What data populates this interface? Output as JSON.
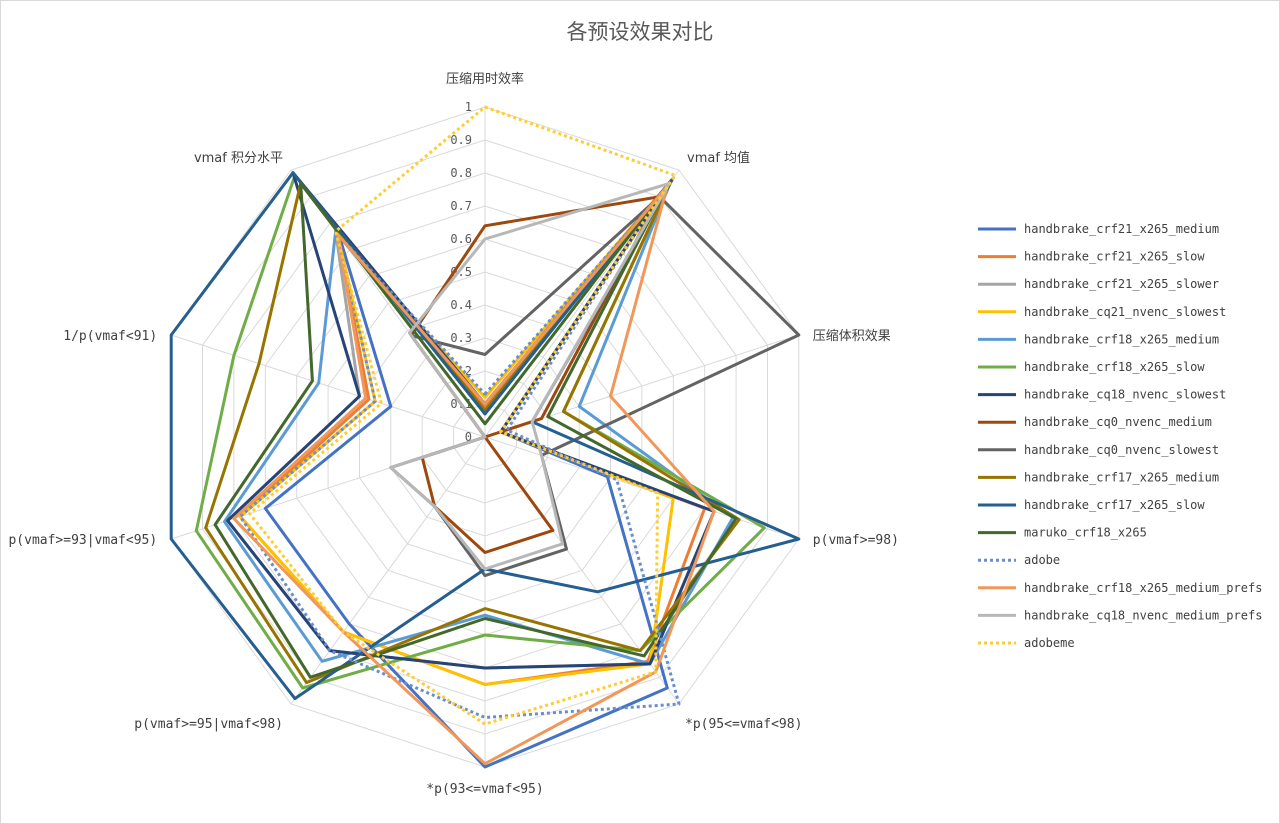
{
  "chart_data": {
    "type": "radar",
    "title": "各预设效果对比",
    "axes": [
      "压缩用时效率",
      "vmaf 均值",
      "压缩体积效果",
      "p(vmaf>=98)",
      "*p(95<=vmaf<98)",
      "*p(93<=vmaf<95)",
      "p(vmaf>=95|vmaf<98)",
      "p(vmaf>=93|vmaf<95)",
      "1/p(vmaf<91)",
      "vmaf 积分水平"
    ],
    "ticks": [
      "0",
      "0.1",
      "0.2",
      "0.3",
      "0.4",
      "0.5",
      "0.6",
      "0.7",
      "0.8",
      "0.9",
      "1"
    ],
    "range": [
      0,
      1
    ],
    "grid": true,
    "legend_position": "right",
    "series": [
      {
        "name": "handbrake_crf21_x265_medium",
        "color": "#4472c4",
        "dash": false,
        "values": [
          0.1,
          0.95,
          0.05,
          0.39,
          0.94,
          1.0,
          0.7,
          0.7,
          0.3,
          0.75
        ]
      },
      {
        "name": "handbrake_crf21_x265_slow",
        "color": "#ed7d31",
        "dash": false,
        "values": [
          0.09,
          0.95,
          0.05,
          0.7,
          0.84,
          0.75,
          0.73,
          0.78,
          0.37,
          0.76
        ]
      },
      {
        "name": "handbrake_crf21_x265_slower",
        "color": "#a5a5a5",
        "dash": false,
        "values": [
          0.08,
          0.95,
          0.05,
          0.73,
          0.85,
          0.7,
          0.8,
          0.82,
          0.4,
          0.77
        ]
      },
      {
        "name": "handbrake_cq21_nvenc_slowest",
        "color": "#ffc000",
        "dash": false,
        "values": [
          0.12,
          0.96,
          0.05,
          0.6,
          0.85,
          0.75,
          0.73,
          0.78,
          0.35,
          0.76
        ]
      },
      {
        "name": "handbrake_crf18_x265_medium",
        "color": "#5b9bd5",
        "dash": false,
        "values": [
          0.08,
          0.96,
          0.3,
          0.79,
          0.85,
          0.54,
          0.84,
          0.83,
          0.53,
          0.77
        ]
      },
      {
        "name": "handbrake_crf18_x265_slow",
        "color": "#70ad47",
        "dash": false,
        "values": [
          0.07,
          0.96,
          0.25,
          0.89,
          0.8,
          0.6,
          0.94,
          0.92,
          0.8,
          0.98
        ]
      },
      {
        "name": "handbrake_cq18_nvenc_slowest",
        "color": "#264478",
        "dash": false,
        "values": [
          0.1,
          0.96,
          0.05,
          0.73,
          0.85,
          0.7,
          0.8,
          0.82,
          0.4,
          0.99
        ]
      },
      {
        "name": "handbrake_cq0_nvenc_medium",
        "color": "#9e480e",
        "dash": false,
        "values": [
          0.64,
          0.9,
          0.18,
          0.0,
          0.35,
          0.35,
          0.26,
          0.2,
          0.0,
          0.38
        ]
      },
      {
        "name": "handbrake_cq0_nvenc_slowest",
        "color": "#636363",
        "dash": false,
        "values": [
          0.25,
          0.9,
          1.0,
          0.18,
          0.42,
          0.42,
          0.26,
          0.3,
          0.0,
          0.38
        ]
      },
      {
        "name": "handbrake_crf17_x265_medium",
        "color": "#997300",
        "dash": false,
        "values": [
          0.08,
          0.96,
          0.25,
          0.81,
          0.8,
          0.52,
          0.92,
          0.89,
          0.72,
          0.95
        ]
      },
      {
        "name": "handbrake_crf17_x265_slow",
        "color": "#255e91",
        "dash": false,
        "values": [
          0.07,
          0.97,
          0.15,
          1.0,
          0.58,
          0.4,
          0.98,
          1.0,
          1.0,
          0.99
        ]
      },
      {
        "name": "maruko_crf18_x265",
        "color": "#43682b",
        "dash": false,
        "values": [
          0.04,
          0.93,
          0.2,
          0.8,
          0.82,
          0.55,
          0.9,
          0.86,
          0.55,
          0.95
        ]
      },
      {
        "name": "adobe",
        "color": "#698ed0",
        "dash": true,
        "values": [
          0.13,
          0.92,
          0.07,
          0.42,
          1.0,
          0.85,
          0.8,
          0.78,
          0.35,
          0.76
        ]
      },
      {
        "name": "handbrake_crf18_x265_medium_prefs",
        "color": "#f1975a",
        "dash": false,
        "values": [
          0.1,
          0.94,
          0.4,
          0.73,
          0.88,
          0.99,
          0.73,
          0.8,
          0.38,
          0.76
        ]
      },
      {
        "name": "handbrake_cq18_nvenc_medium_prefs",
        "color": "#b7b7b7",
        "dash": false,
        "values": [
          0.6,
          0.95,
          0.15,
          0.18,
          0.4,
          0.4,
          0.26,
          0.3,
          0.0,
          0.39
        ]
      },
      {
        "name": "adobeme",
        "color": "#ffcd33",
        "dash": true,
        "values": [
          1.0,
          0.98,
          0.05,
          0.55,
          0.88,
          0.87,
          0.73,
          0.75,
          0.33,
          0.77
        ]
      }
    ]
  }
}
